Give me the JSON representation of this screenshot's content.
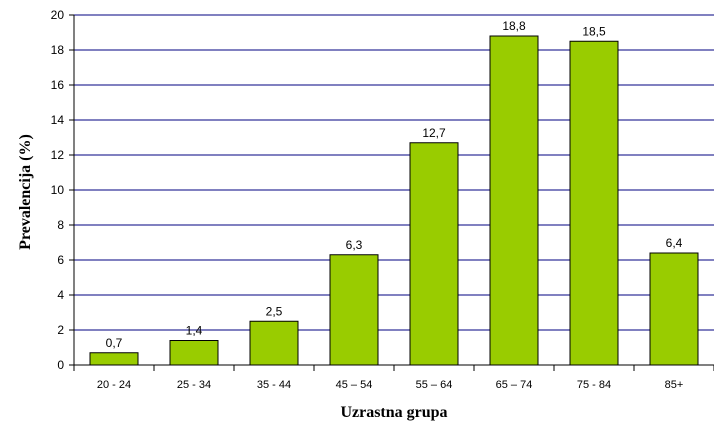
{
  "chart_data": {
    "type": "bar",
    "categories": [
      "20 - 24",
      "25 - 34",
      "35 - 44",
      "45 – 54",
      "55 – 64",
      "65 – 74",
      "75 - 84",
      "85+"
    ],
    "values": [
      0.7,
      1.4,
      2.5,
      6.3,
      12.7,
      18.8,
      18.5,
      6.4
    ],
    "data_labels": [
      "0,7",
      "1,4",
      "2,5",
      "6,3",
      "12,7",
      "18,8",
      "18,5",
      "6,4"
    ],
    "y_ticks": [
      0,
      2,
      4,
      6,
      8,
      10,
      12,
      14,
      16,
      18,
      20
    ],
    "xlabel": "Uzrastna grupa",
    "ylabel": "Prevalencija (%)",
    "ylim": [
      0,
      20
    ],
    "grid": true,
    "legend": "none",
    "bar_color": "#99CC00",
    "bar_edge_color": "#000000",
    "grid_color": "#000080"
  }
}
